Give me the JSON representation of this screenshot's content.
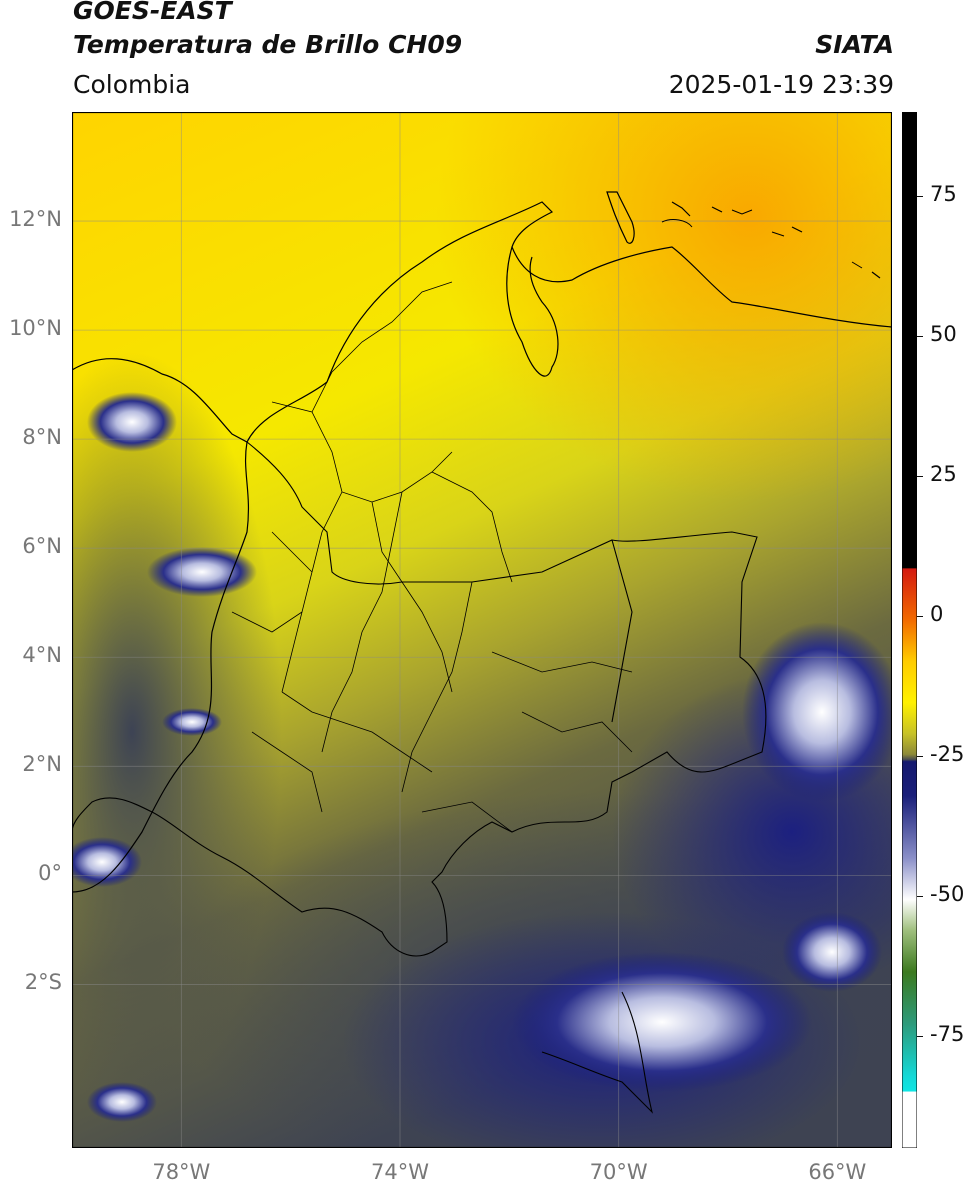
{
  "header": {
    "satellite": "GOES-EAST",
    "product": "Temperatura de Brillo CH09",
    "organization": "SIATA",
    "region": "Colombia",
    "datetime": "2025-01-19 23:39"
  },
  "map": {
    "lon_range": [
      -80,
      -65
    ],
    "lat_range": [
      -5,
      14
    ],
    "lat_ticks": [
      "12°N",
      "10°N",
      "8°N",
      "6°N",
      "4°N",
      "2°N",
      "0°",
      "2°S"
    ],
    "lon_ticks": [
      "78°W",
      "74°W",
      "70°W",
      "66°W"
    ],
    "gridlines": true
  },
  "colorbar": {
    "min": -95,
    "max": 90,
    "ticks": [
      "75",
      "50",
      "25",
      "0",
      "-25",
      "-50",
      "-75"
    ],
    "colors": {
      "black": "#000000",
      "red": "#e8201a",
      "orange": "#f9a600",
      "yellow": "#ffee00",
      "olive": "#b7b224",
      "grey": "#3f4552",
      "navy": "#1a1f7a",
      "white": "#ffffff",
      "green": "#4e7d2a",
      "cyan": "#14d8d6"
    }
  }
}
